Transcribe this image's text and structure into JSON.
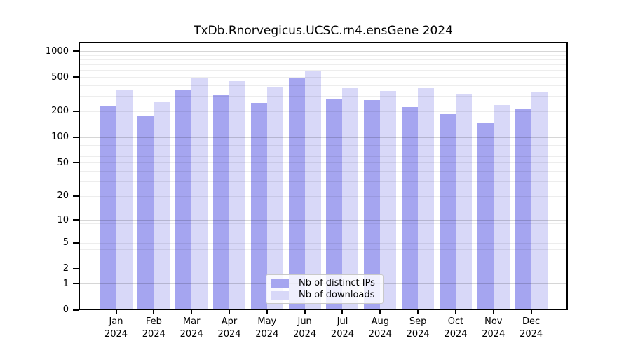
{
  "chart_data": {
    "type": "bar",
    "title": "TxDb.Rnorvegicus.UCSC.rn4.ensGene 2024",
    "scale": "log1p",
    "ylim": [
      0,
      1000
    ],
    "yticks": [
      1000,
      500,
      200,
      100,
      50,
      20,
      10,
      5,
      2,
      1,
      0
    ],
    "categories": [
      "Jan",
      "Feb",
      "Mar",
      "Apr",
      "May",
      "Jun",
      "Jul",
      "Aug",
      "Sep",
      "Oct",
      "Nov",
      "Dec"
    ],
    "year": "2024",
    "series": [
      {
        "name": "Nb of distinct IPs",
        "color": "#a5a5f0",
        "values": [
          234,
          177,
          355,
          307,
          249,
          495,
          273,
          268,
          225,
          186,
          145,
          217
        ]
      },
      {
        "name": "Nb of downloads",
        "color": "#d8d8f8",
        "values": [
          358,
          257,
          481,
          451,
          386,
          592,
          371,
          344,
          371,
          317,
          236,
          337
        ]
      }
    ],
    "grid": {
      "enabled": true,
      "minor_color": "#ededed",
      "major_color": "#d1d1d1"
    },
    "legend": {
      "position": "lower center inside"
    },
    "axis_color": "#000000",
    "background": "#ffffff"
  }
}
